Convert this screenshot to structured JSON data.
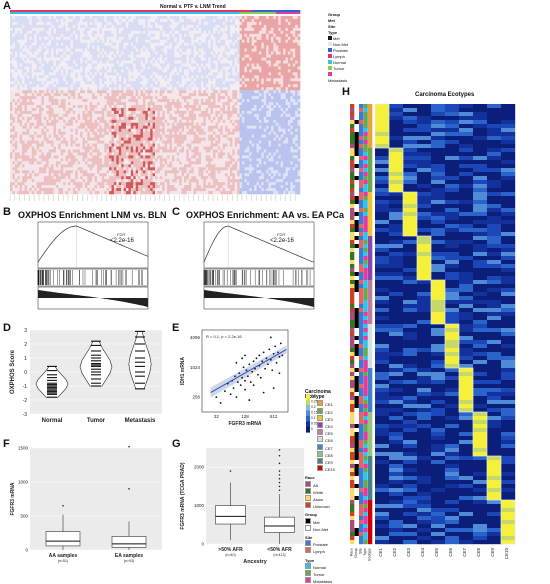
{
  "figure": {
    "panel_letters": [
      "A",
      "B",
      "C",
      "D",
      "E",
      "F",
      "G",
      "H"
    ]
  },
  "panelA": {
    "title": "Normal v. PTF v. LNM Trend",
    "legend_title": "Group\nMet\nSite\nType",
    "legend_items": [
      "Met",
      "Non.Met",
      "Prostate",
      "Lymph",
      "Normal",
      "Tumor",
      "Metastasis"
    ],
    "legend_colors": [
      "#1a1a1a",
      "#e8e8e8",
      "#3a5fd8",
      "#e8326e",
      "#2ec4e8",
      "#8ccf4a",
      "#e03ca0"
    ]
  },
  "panelB": {
    "title": "OXPHOS Enrichment LNM vs. BLN",
    "stat_label": "FDR",
    "stat_value": "<2.2e-16"
  },
  "panelC": {
    "title": "OXPHOS Enrichment: AA vs. EA PCa",
    "stat_label": "FDR",
    "stat_value": "<2.2e-16"
  },
  "chart_data": [
    {
      "panel": "D",
      "type": "violin",
      "ylabel": "OXPHOS Score",
      "categories": [
        "Normal",
        "Tumor",
        "Metastasis"
      ],
      "ylim": [
        -3,
        3
      ],
      "yticks": [
        -3,
        -2,
        -1,
        0,
        1,
        2,
        3
      ],
      "series": [
        {
          "values": [
            -1.8,
            -1.6,
            -1.5,
            -1.4,
            -1.3,
            -1.2,
            -1.1,
            -1.0,
            -0.9,
            -0.8,
            -0.6,
            -0.4,
            -0.2,
            0.1,
            0.4
          ]
        },
        {
          "values": [
            -1.0,
            -0.8,
            -0.5,
            -0.2,
            0.0,
            0.2,
            0.4,
            0.5,
            0.6,
            0.8,
            1.0,
            1.2,
            1.5,
            1.9,
            2.2
          ]
        },
        {
          "values": [
            -1.2,
            -0.8,
            -0.3,
            0.0,
            0.4,
            0.7,
            1.0,
            1.5,
            2.0,
            2.5,
            2.9
          ]
        }
      ]
    },
    {
      "panel": "E",
      "type": "scatter",
      "xlabel": "FGFR3 mRNA",
      "ylabel": "IDH1 mRNA",
      "annotation": "R = 0.1, p = 2.2e-16",
      "xticks": [
        "32",
        "128",
        "512"
      ],
      "yticks": [
        "256",
        "1024",
        "4096"
      ],
      "xlim_log2": [
        4,
        10
      ],
      "ylim_log2": [
        7,
        12.5
      ],
      "points_log2": [
        [
          5.0,
          8.0
        ],
        [
          5.3,
          7.6
        ],
        [
          5.6,
          8.4
        ],
        [
          5.8,
          8.9
        ],
        [
          6.0,
          8.2
        ],
        [
          6.1,
          9.1
        ],
        [
          6.2,
          8.6
        ],
        [
          6.3,
          9.4
        ],
        [
          6.4,
          8.0
        ],
        [
          6.5,
          9.0
        ],
        [
          6.6,
          9.6
        ],
        [
          6.7,
          8.8
        ],
        [
          6.8,
          9.3
        ],
        [
          6.9,
          10.0
        ],
        [
          7.0,
          9.1
        ],
        [
          7.0,
          8.5
        ],
        [
          7.1,
          9.8
        ],
        [
          7.2,
          9.4
        ],
        [
          7.3,
          10.2
        ],
        [
          7.4,
          9.0
        ],
        [
          7.5,
          9.7
        ],
        [
          7.6,
          10.4
        ],
        [
          7.6,
          8.8
        ],
        [
          7.7,
          9.9
        ],
        [
          7.8,
          10.6
        ],
        [
          7.9,
          9.5
        ],
        [
          8.0,
          10.1
        ],
        [
          8.0,
          10.8
        ],
        [
          8.1,
          9.3
        ],
        [
          8.2,
          10.4
        ],
        [
          8.3,
          11.0
        ],
        [
          8.4,
          9.9
        ],
        [
          8.5,
          10.6
        ],
        [
          8.6,
          10.2
        ],
        [
          8.7,
          11.2
        ],
        [
          8.8,
          10.5
        ],
        [
          8.9,
          9.8
        ],
        [
          9.0,
          10.9
        ],
        [
          9.1,
          11.4
        ],
        [
          9.2,
          10.3
        ],
        [
          9.3,
          11.0
        ],
        [
          9.4,
          10.7
        ],
        [
          9.5,
          11.6
        ],
        [
          9.6,
          10.8
        ],
        [
          9.0,
          8.6
        ],
        [
          8.3,
          8.3
        ],
        [
          7.0,
          10.8
        ],
        [
          6.4,
          10.3
        ],
        [
          8.8,
          12.0
        ],
        [
          9.4,
          9.6
        ],
        [
          7.3,
          7.8
        ],
        [
          6.8,
          10.6
        ]
      ],
      "fit_line_log2": [
        [
          4.6,
          8.3
        ],
        [
          9.9,
          11.2
        ]
      ]
    },
    {
      "panel": "F",
      "type": "box",
      "ylabel": "FGFR3 mRNA",
      "categories": [
        "AA samples",
        "EA samples"
      ],
      "category_notes": [
        "(n=51)",
        "(n=93)"
      ],
      "ylim": [
        0,
        1500
      ],
      "yticks": [
        0,
        500,
        1000,
        1500
      ],
      "boxes": [
        {
          "q1": 60,
          "median": 130,
          "q3": 270,
          "whisker_low": 0,
          "whisker_high": 520,
          "outliers": [
            650
          ]
        },
        {
          "q1": 40,
          "median": 90,
          "q3": 200,
          "whisker_low": 0,
          "whisker_high": 420,
          "outliers": [
            900,
            1520
          ]
        }
      ]
    },
    {
      "panel": "G",
      "type": "box",
      "ylabel": "FGFR3 mRNA (TCGA PRAD)",
      "xlabel": "Ancestry",
      "categories": [
        ">50% AFR",
        "<50% AFR"
      ],
      "category_notes": [
        "(n=40)",
        "(n=413)"
      ],
      "ylim": [
        0,
        2500
      ],
      "yticks": [
        0,
        1000,
        2000
      ],
      "boxes": [
        {
          "q1": 520,
          "median": 720,
          "q3": 1000,
          "whisker_low": 100,
          "whisker_high": 1600,
          "outliers": [
            1900
          ]
        },
        {
          "q1": 300,
          "median": 470,
          "q3": 700,
          "whisker_low": 0,
          "whisker_high": 1300,
          "outliers": [
            1400,
            1500,
            1600,
            1700,
            1800,
            1900,
            2100,
            2300,
            2450
          ]
        }
      ]
    },
    {
      "panel": "H",
      "type": "heatmap",
      "title": "Carcinoma Ecotypes",
      "columns": [
        "CE1",
        "CE2",
        "CE3",
        "CE4",
        "CE5",
        "CE6",
        "CE7",
        "CE8",
        "CE9",
        "CE10"
      ],
      "colorbar_ticks": [
        "0.3",
        "0.25",
        "0.2",
        "0.15",
        "0.1",
        "0.05",
        "0"
      ]
    }
  ],
  "legendH": {
    "ecotype_title": "Carcinoma Ecotype",
    "ecotypes": [
      "CE1",
      "CE2",
      "CE3",
      "CE4",
      "CE5",
      "CE6",
      "CE7",
      "CE8",
      "CE9",
      "CE10"
    ],
    "ecotype_colors": [
      "#e8a13a",
      "#6aa84f",
      "#f1c232",
      "#8e44ad",
      "#c27ba0",
      "#d0e0e3",
      "#3d85c6",
      "#93c47d",
      "#45818e",
      "#cc0000"
    ],
    "race_title": "Race",
    "race_items": [
      "AA",
      "White",
      "Asian",
      "Unknown"
    ],
    "race_colors": [
      "#a64d79",
      "#38761d",
      "#ffd966",
      "#cc4125"
    ],
    "group_title": "Group",
    "group_items": [
      "Met",
      "Non.Met"
    ],
    "group_colors": [
      "#000000",
      "#ffffff"
    ],
    "site_title": "Site",
    "site_items": [
      "Prostate",
      "Lymph"
    ],
    "site_colors": [
      "#3c78d8",
      "#e06666"
    ],
    "type_title": "Type",
    "type_items": [
      "Normal",
      "Tumor",
      "Metastasis"
    ],
    "type_colors": [
      "#2ec4e8",
      "#6aa84f",
      "#e03ca0"
    ],
    "side_labels": [
      "Race",
      "Group",
      "Site",
      "Type",
      "Ecotype"
    ]
  }
}
